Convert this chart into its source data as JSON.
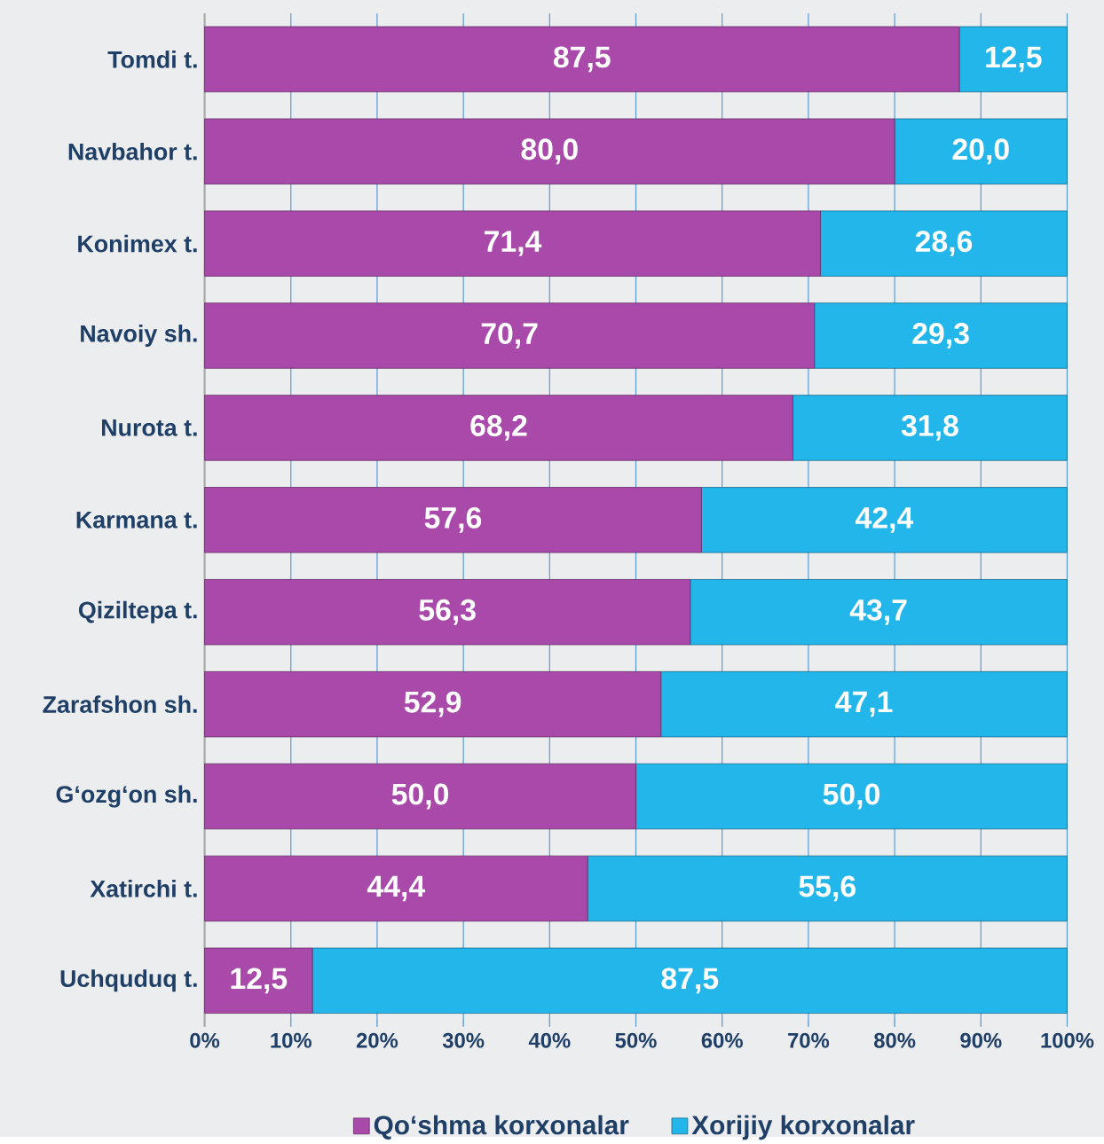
{
  "chart_data": {
    "type": "bar",
    "orientation": "horizontal",
    "stacked": true,
    "categories": [
      "Tomdi t.",
      "Navbahor t.",
      "Konimex t.",
      "Navoiy sh.",
      "Nurota t.",
      "Karmana t.",
      "Qiziltepa t.",
      "Zarafshon sh.",
      "G‘ozg‘on sh.",
      "Xatirchi t.",
      "Uchquduq t."
    ],
    "series": [
      {
        "name": "Qo‘shma korxonalar",
        "color": "#a94aaa",
        "values": [
          87.5,
          80.0,
          71.4,
          70.7,
          68.2,
          57.6,
          56.3,
          52.9,
          50.0,
          44.4,
          12.5
        ],
        "value_labels": [
          "87,5",
          "80,0",
          "71,4",
          "70,7",
          "68,2",
          "57,6",
          "56,3",
          "52,9",
          "50,0",
          "44,4",
          "12,5"
        ]
      },
      {
        "name": "Xorijiy korxonalar",
        "color": "#22b6ea",
        "values": [
          12.5,
          20.0,
          28.6,
          29.3,
          31.8,
          42.4,
          43.7,
          47.1,
          50.0,
          55.6,
          87.5
        ],
        "value_labels": [
          "12,5",
          "20,0",
          "28,6",
          "29,3",
          "31,8",
          "42,4",
          "43,7",
          "47,1",
          "50,0",
          "55,6",
          "87,5"
        ]
      }
    ],
    "xlim": [
      0,
      100
    ],
    "xticks": [
      {
        "value": 0,
        "label": "0%"
      },
      {
        "value": 10,
        "label": "10%"
      },
      {
        "value": 20,
        "label": "20%"
      },
      {
        "value": 30,
        "label": "30%"
      },
      {
        "value": 40,
        "label": "40%"
      },
      {
        "value": 50,
        "label": "50%"
      },
      {
        "value": 60,
        "label": "60%"
      },
      {
        "value": 70,
        "label": "70%"
      },
      {
        "value": 80,
        "label": "80%"
      },
      {
        "value": 90,
        "label": "90%"
      },
      {
        "value": 100,
        "label": "100%"
      }
    ],
    "grid": "x",
    "legend": "bottom"
  }
}
